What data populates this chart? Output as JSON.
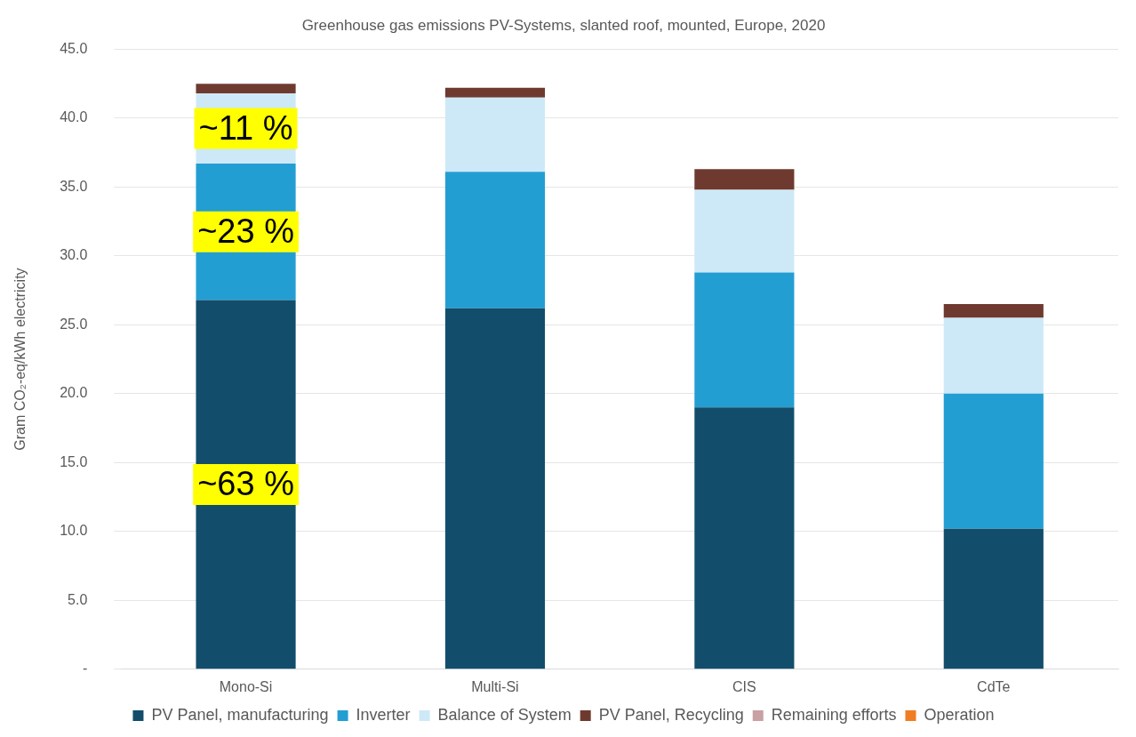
{
  "chart_data": {
    "type": "bar",
    "title": "Greenhouse gas emissions PV-Systems, slanted roof, mounted, Europe, 2020",
    "ylabel": "Gram CO₂-eq/kWh electricity",
    "categories": [
      "Mono-Si",
      "Multi-Si",
      "CIS",
      "CdTe"
    ],
    "stacked": true,
    "series": [
      {
        "name": "PV Panel, manufacturing",
        "color": "#124e6b",
        "values": [
          26.8,
          26.2,
          19.0,
          10.2
        ]
      },
      {
        "name": "Inverter",
        "color": "#239ed3",
        "values": [
          9.9,
          9.9,
          9.8,
          9.8
        ]
      },
      {
        "name": "Balance of System",
        "color": "#cde9f7",
        "values": [
          5.1,
          5.4,
          6.0,
          5.5
        ]
      },
      {
        "name": "PV Panel, Recycling",
        "color": "#6e3a2f",
        "values": [
          0.7,
          0.7,
          1.5,
          1.0
        ]
      },
      {
        "name": "Remaining efforts",
        "color": "#c9a0a3",
        "values": [
          0,
          0,
          0,
          0
        ]
      },
      {
        "name": "Operation",
        "color": "#f07d21",
        "values": [
          0,
          0,
          0,
          0
        ]
      }
    ],
    "ylim": [
      0,
      45
    ],
    "yticks": [
      {
        "value": 0,
        "label": "-"
      },
      {
        "value": 5,
        "label": "5.0"
      },
      {
        "value": 10,
        "label": "10.0"
      },
      {
        "value": 15,
        "label": "15.0"
      },
      {
        "value": 20,
        "label": "20.0"
      },
      {
        "value": 25,
        "label": "25.0"
      },
      {
        "value": 30,
        "label": "30.0"
      },
      {
        "value": 35,
        "label": "35.0"
      },
      {
        "value": 40,
        "label": "40.0"
      },
      {
        "value": 45,
        "label": "45.0"
      }
    ],
    "grid": "y",
    "legend": "bottom",
    "annotations": [
      "~11 %",
      "~23 %",
      "~63 %"
    ]
  }
}
